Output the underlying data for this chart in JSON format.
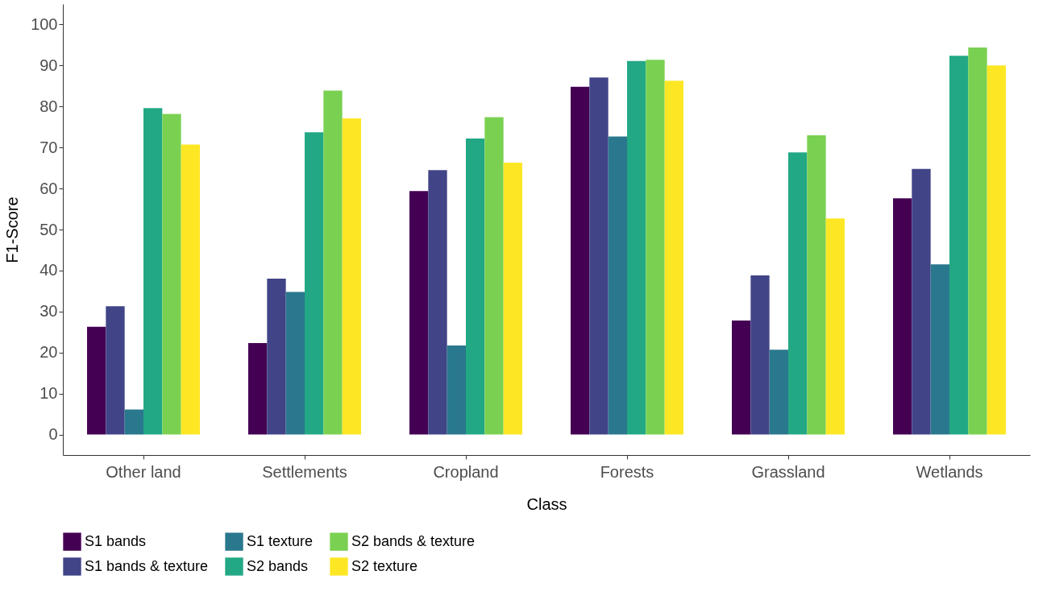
{
  "chart_data": {
    "type": "bar",
    "xlabel": "Class",
    "ylabel": "F1-Score",
    "categories": [
      "Other land",
      "Settlements",
      "Cropland",
      "Forests",
      "Grassland",
      "Wetlands"
    ],
    "series": [
      {
        "name": "S1 bands",
        "color": "#440154",
        "values": [
          26.3,
          22.3,
          59.4,
          84.8,
          27.8,
          57.6
        ]
      },
      {
        "name": "S1 bands & texture",
        "color": "#414487",
        "values": [
          31.3,
          38.0,
          64.5,
          87.1,
          38.8,
          64.8
        ]
      },
      {
        "name": "S1 texture",
        "color": "#2a788e",
        "values": [
          6.1,
          34.8,
          21.7,
          72.7,
          20.7,
          41.5
        ]
      },
      {
        "name": "S2 bands",
        "color": "#22a884",
        "values": [
          79.6,
          73.7,
          72.2,
          91.1,
          68.8,
          92.4
        ]
      },
      {
        "name": "S2 bands & texture",
        "color": "#7ad151",
        "values": [
          78.2,
          83.9,
          77.4,
          91.4,
          73.0,
          94.4
        ]
      },
      {
        "name": "S2 texture",
        "color": "#fde725",
        "values": [
          70.7,
          77.1,
          66.3,
          86.3,
          52.7,
          90.0
        ]
      }
    ],
    "ylim": [
      -5,
      105
    ],
    "yticks": [
      0,
      10,
      20,
      30,
      40,
      50,
      60,
      70,
      80,
      90,
      100
    ],
    "grid": false,
    "legend": "bottom"
  }
}
